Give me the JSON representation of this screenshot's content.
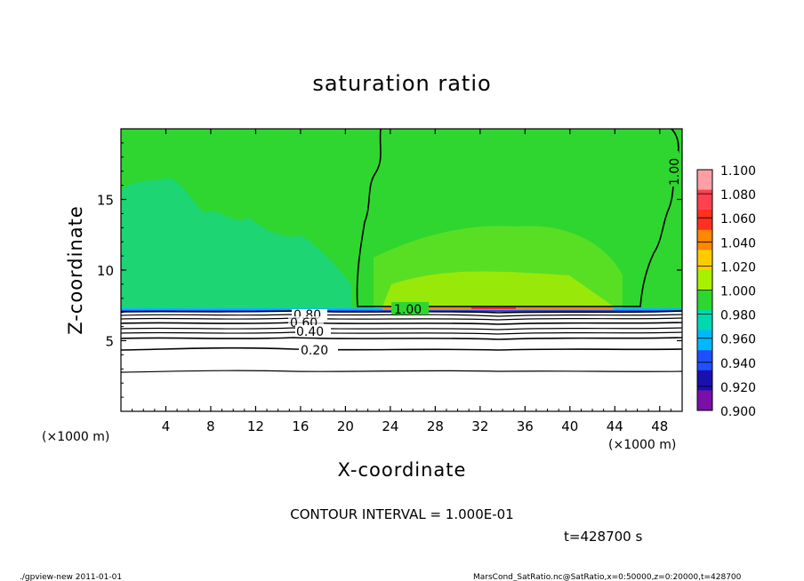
{
  "chart_data": {
    "type": "heatmap",
    "title": "saturation ratio",
    "xlabel": "X-coordinate",
    "ylabel": "Z-coordinate",
    "x_unit": "(×1000 m)",
    "z_unit": "(×1000 m)",
    "xlim": [
      0,
      50
    ],
    "ylim": [
      0,
      20
    ],
    "x_ticks": [
      4,
      8,
      12,
      16,
      20,
      24,
      28,
      32,
      36,
      40,
      44,
      48
    ],
    "y_ticks": [
      5,
      10,
      15
    ],
    "colorbar": {
      "levels": [
        "1.100",
        "1.080",
        "1.060",
        "1.040",
        "1.020",
        "1.000",
        "0.980",
        "0.960",
        "0.940",
        "0.920",
        "0.900"
      ],
      "colors": [
        "#ff9fa5",
        "#ff4050",
        "#ff3020",
        "#ff8800",
        "#ffcc00",
        "#a8f000",
        "#2fd62f",
        "#00d8b0",
        "#00b8ff",
        "#1e50ff",
        "#1a10b0",
        "#7a10a8"
      ]
    },
    "contour_labels": [
      "1.00",
      "1.00",
      "0.80",
      "0.60",
      "0.40",
      "0.20"
    ],
    "contour_interval_text": "CONTOUR INTERVAL = 1.000E-01",
    "time_text": "t=428700 s"
  },
  "footer": {
    "left": "./gpview-new  2011-01-01",
    "right": "MarsCond_SatRatio.nc@SatRatio,x=0:50000,z=0:20000,t=428700"
  }
}
